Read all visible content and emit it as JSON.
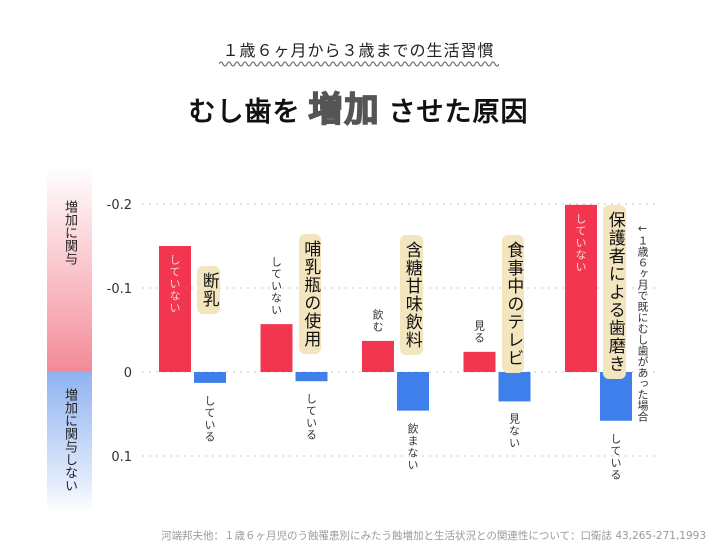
{
  "header": {
    "subtitle": "１歳６ヶ月から３歳までの生活習慣",
    "title_before": "むし歯を",
    "title_emph": "増加",
    "title_after": "させた原因"
  },
  "legend": {
    "increase_label": "増加に関与",
    "no_increase_label": "増加に関与しない",
    "increase_color": "#f28a96",
    "no_increase_color": "#8fb2f2"
  },
  "chart_data": {
    "type": "bar",
    "title": "むし歯を増加させた原因",
    "subtitle": "１歳６ヶ月から３歳までの生活習慣",
    "xlabel": "",
    "ylabel": "",
    "y_inverted": true,
    "ylim": [
      -0.2,
      0.1
    ],
    "yticks": [
      -0.2,
      -0.1,
      0,
      0.1
    ],
    "ytick_labels": [
      "-0.2",
      "-0.1",
      "0",
      "0.1"
    ],
    "grid": true,
    "categories": [
      "断乳",
      "哺乳瓶の使用",
      "含糖甘味飲料",
      "食事中のテレビ",
      "保護者による歯磨き"
    ],
    "series": [
      {
        "name": "増加に関与",
        "color": "#f2364f",
        "values": [
          -0.15,
          -0.057,
          -0.037,
          -0.024,
          -0.199
        ],
        "labels": [
          "していない",
          "していない",
          "飲む",
          "見る",
          "していない"
        ]
      },
      {
        "name": "増加に関与しない",
        "color": "#3f7fec",
        "values": [
          0.013,
          0.011,
          0.046,
          0.035,
          0.058
        ],
        "labels": [
          "している",
          "している",
          "飲まない",
          "見ない",
          "している"
        ]
      }
    ],
    "annotations": [
      "←１歳６ヶ月で既にむし歯があった場合"
    ]
  },
  "footer": {
    "citation": "河端邦夫他：１歳６ヶ月児のう蝕罹患別にみたう蝕増加と生活状況との関連性について：口衛誌 43,265-271,1993"
  }
}
